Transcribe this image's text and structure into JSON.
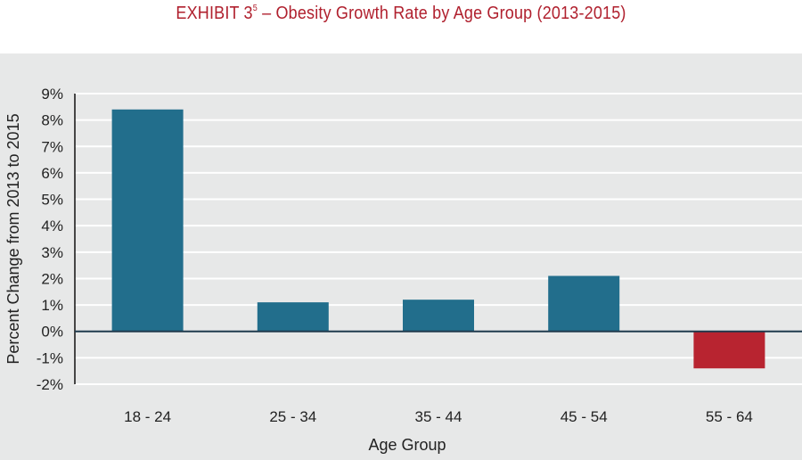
{
  "chart_data": {
    "type": "bar",
    "title_main": "EXHIBIT 3",
    "title_superscript": "5",
    "title_rest": " – Obesity Growth Rate by Age Group (2013-2015)",
    "xlabel": "Age Group",
    "ylabel": "Percent Change from 2013 to 2015",
    "categories": [
      "18 - 24",
      "25 - 34",
      "35 - 44",
      "45 - 54",
      "55 - 64"
    ],
    "values": [
      8.4,
      1.1,
      1.2,
      2.1,
      -1.4
    ],
    "ylim": [
      -2,
      9
    ],
    "yticks": [
      -2,
      -1,
      0,
      1,
      2,
      3,
      4,
      5,
      6,
      7,
      8,
      9
    ],
    "ytick_labels": [
      "-2%",
      "-1%",
      "0%",
      "1%",
      "2%",
      "3%",
      "4%",
      "5%",
      "6%",
      "7%",
      "8%",
      "9%"
    ],
    "grid": true,
    "colors": {
      "positive": "#226e8c",
      "negative": "#b82430",
      "title": "#b0202e",
      "panel": "#e7e8e8",
      "gridline": "#ffffff",
      "zero_line": "#1f3a4d"
    }
  }
}
